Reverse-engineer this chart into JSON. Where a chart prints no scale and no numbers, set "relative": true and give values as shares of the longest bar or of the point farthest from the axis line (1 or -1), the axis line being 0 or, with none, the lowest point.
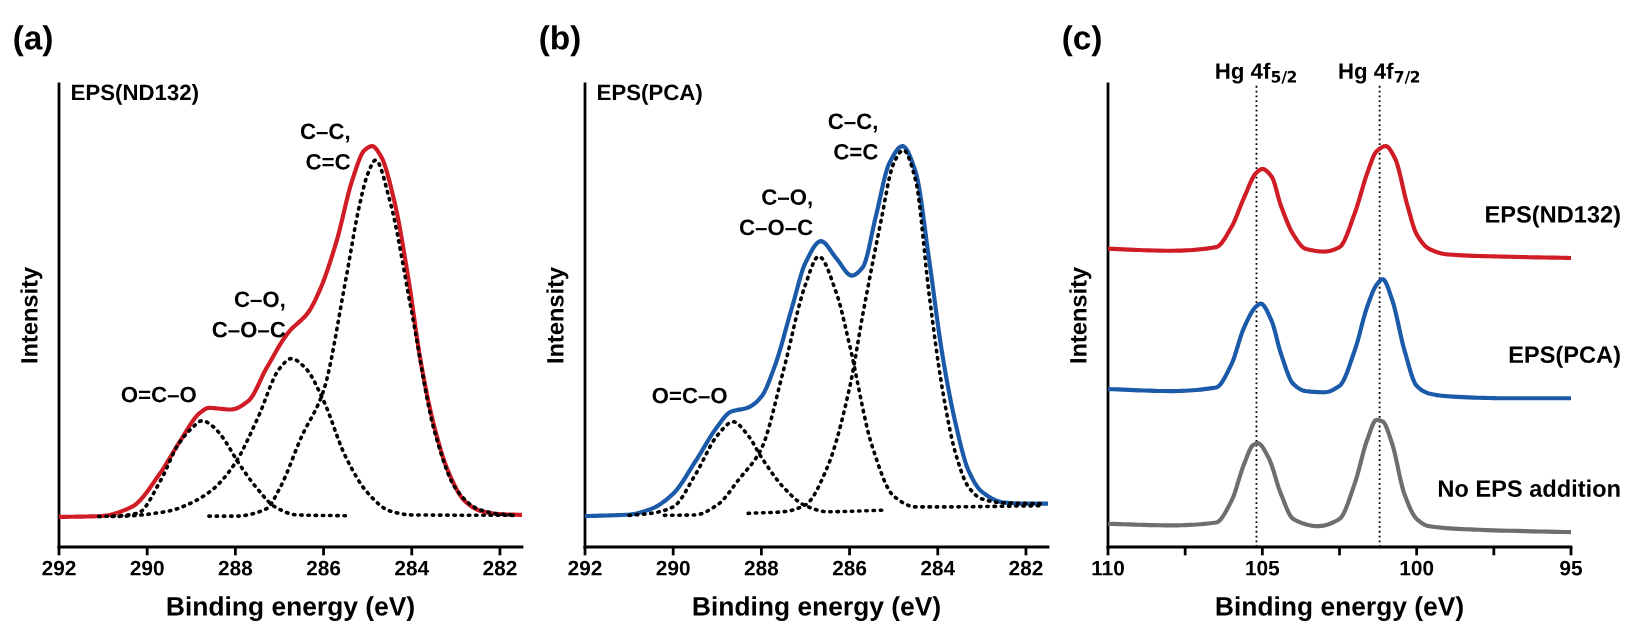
{
  "chart_data": [
    {
      "type": "line",
      "title": "(a)",
      "subtitle": "EPS(ND132)",
      "xlabel": "Binding energy (eV)",
      "ylabel": "Intensity",
      "relative": true,
      "tick_labels": "x",
      "grid": false,
      "legend": false,
      "marker": "none",
      "line_style": "solid",
      "xlim": [
        292,
        281.5
      ],
      "xticks": [
        292,
        290,
        288,
        286,
        284,
        282
      ],
      "series": [
        {
          "color": "#000000",
          "line_style": "dotted",
          "x": [
            291.1,
            290.6,
            290.2,
            289.7,
            289.3,
            289,
            288.75,
            288.5,
            288.3,
            287.9,
            287.5,
            287.1,
            286.6,
            285.5
          ],
          "values": [
            0.076,
            0.078,
            0.085,
            0.165,
            0.255,
            0.295,
            0.315,
            0.3,
            0.275,
            0.205,
            0.145,
            0.1,
            0.08,
            0.078
          ]
        },
        {
          "color": "#000000",
          "line_style": "dotted",
          "x": [
            290.8,
            290.5,
            289.5,
            289,
            288.5,
            288,
            287.5,
            287,
            286.73,
            286.4,
            286,
            285.5,
            285,
            284.5,
            284,
            281.7
          ],
          "values": [
            0.076,
            0.077,
            0.09,
            0.11,
            0.145,
            0.21,
            0.32,
            0.445,
            0.47,
            0.445,
            0.365,
            0.225,
            0.135,
            0.09,
            0.08,
            0.079
          ]
        },
        {
          "color": "#000000",
          "line_style": "dotted",
          "x": [
            288.6,
            288,
            287.3,
            287,
            286.5,
            286,
            285.5,
            285.2,
            285,
            284.82,
            284.5,
            284,
            283.5,
            283,
            282.5,
            282,
            281.7
          ],
          "values": [
            0.077,
            0.077,
            0.095,
            0.145,
            0.275,
            0.39,
            0.665,
            0.845,
            0.93,
            0.965,
            0.865,
            0.585,
            0.295,
            0.145,
            0.095,
            0.082,
            0.08
          ]
        },
        {
          "color": "#d01c24",
          "x": [
            292,
            291.07,
            290.35,
            289.7,
            289.25,
            288.8,
            288.6,
            288.1,
            287.7,
            287.3,
            286.8,
            286.35,
            286.07,
            285.7,
            285.35,
            285.07,
            284.9,
            284.7,
            284.4,
            284.07,
            283.8,
            283.5,
            283.16,
            282.8,
            282.44,
            282,
            281.5
          ],
          "values": [
            0.075,
            0.077,
            0.1,
            0.185,
            0.265,
            0.335,
            0.347,
            0.343,
            0.365,
            0.445,
            0.535,
            0.585,
            0.645,
            0.765,
            0.915,
            0.99,
            1.0,
            0.975,
            0.865,
            0.665,
            0.465,
            0.305,
            0.185,
            0.115,
            0.09,
            0.082,
            0.08
          ]
        }
      ],
      "annotations": [
        "O=C–O",
        "C–O,\nC–O–C",
        "C–C,\nC=C"
      ]
    },
    {
      "type": "line",
      "title": "(b)",
      "subtitle": "EPS(PCA)",
      "xlabel": "Binding energy (eV)",
      "ylabel": "Intensity",
      "relative": true,
      "tick_labels": "x",
      "grid": false,
      "legend": false,
      "marker": "none",
      "line_style": "solid",
      "xlim": [
        292,
        281.5
      ],
      "xticks": [
        292,
        290,
        288,
        286,
        284,
        282
      ],
      "series": [
        {
          "color": "#000000",
          "line_style": "dotted",
          "x": [
            291,
            290.5,
            290,
            289.5,
            289,
            288.64,
            288.3,
            288,
            287.5,
            287,
            286.5,
            285.2
          ],
          "values": [
            0.079,
            0.084,
            0.1,
            0.18,
            0.278,
            0.3125,
            0.278,
            0.224,
            0.149,
            0.103,
            0.088,
            0.092
          ]
        },
        {
          "color": "#000000",
          "line_style": "dotted",
          "x": [
            290.2,
            289.5,
            289,
            288.5,
            288,
            287.5,
            287,
            286.7,
            286.3,
            286,
            285.5,
            285,
            284.5,
            284,
            281.65
          ],
          "values": [
            0.079,
            0.08,
            0.105,
            0.17,
            0.245,
            0.44,
            0.655,
            0.725,
            0.634,
            0.504,
            0.256,
            0.127,
            0.1,
            0.1,
            0.103
          ]
        },
        {
          "color": "#000000",
          "line_style": "dotted",
          "x": [
            288.3,
            287.5,
            287,
            286.5,
            286,
            285.7,
            285.3,
            285,
            284.78,
            284.5,
            284.2,
            283.9,
            283.6,
            283.3,
            283,
            282.5,
            281.65
          ],
          "values": [
            0.084,
            0.088,
            0.105,
            0.2,
            0.397,
            0.58,
            0.806,
            0.957,
            0.99,
            0.914,
            0.634,
            0.397,
            0.235,
            0.149,
            0.12,
            0.11,
            0.108
          ]
        },
        {
          "color": "#1a5aa8",
          "x": [
            292,
            291,
            290.5,
            290,
            289.5,
            289,
            288.7,
            288.3,
            288,
            287.7,
            287.3,
            287,
            286.65,
            286.3,
            285.95,
            285.7,
            285.4,
            285.1,
            284.8,
            284.5,
            284.2,
            283.9,
            283.6,
            283.3,
            283,
            282.5,
            282,
            281.5
          ],
          "values": [
            0.077,
            0.081,
            0.095,
            0.133,
            0.213,
            0.3,
            0.337,
            0.348,
            0.375,
            0.45,
            0.6,
            0.709,
            0.763,
            0.72,
            0.677,
            0.698,
            0.827,
            0.957,
            1.0,
            0.935,
            0.72,
            0.483,
            0.31,
            0.19,
            0.138,
            0.111,
            0.108,
            0.108
          ]
        }
      ],
      "annotations": [
        "O=C–O",
        "C–O,\nC–O–C",
        "C–C,\nC=C"
      ]
    },
    {
      "type": "line",
      "title": "(c)",
      "xlabel": "Binding energy (eV)",
      "ylabel": "Intensity",
      "relative": true,
      "tick_labels": "x",
      "grid": false,
      "legend": false,
      "marker": "none",
      "line_style": "solid",
      "xlim": [
        110,
        95
      ],
      "xticks": [
        110,
        {
          "value": 107.5,
          "label": null
        },
        105,
        {
          "value": 102.5,
          "label": null
        },
        100,
        {
          "value": 97.5,
          "label": null
        },
        95
      ],
      "ref_lines": [
        {
          "axis": "x",
          "value": 105.19,
          "label": "Hg 4f$_{5/2}$",
          "color": "#000000",
          "line_style": "dotted"
        },
        {
          "axis": "x",
          "value": 101.2,
          "label": "Hg 4f$_{7/2}$",
          "color": "#000000",
          "line_style": "dotted"
        }
      ],
      "series": [
        {
          "name": "EPS(ND132)",
          "color": "#d01c24",
          "x": [
            110,
            108,
            106.5,
            106,
            105.6,
            105.2,
            105,
            104.7,
            104.4,
            104,
            103.6,
            103,
            102.5,
            102,
            101.6,
            101.3,
            101,
            100.7,
            100.3,
            100,
            99.6,
            99,
            97,
            95
          ],
          "values": [
            0.744,
            0.739,
            0.748,
            0.798,
            0.87,
            0.933,
            0.943,
            0.924,
            0.852,
            0.78,
            0.744,
            0.737,
            0.748,
            0.834,
            0.933,
            0.987,
            1.0,
            0.969,
            0.852,
            0.78,
            0.744,
            0.73,
            0.724,
            0.721
          ]
        },
        {
          "name": "EPS(PCA)",
          "color": "#1a5aa8",
          "x": [
            110,
            108,
            106.5,
            106,
            105.6,
            105.2,
            105.05,
            104.7,
            104.4,
            104,
            103.6,
            103,
            102.5,
            102,
            101.6,
            101.3,
            101.1,
            100.8,
            100.4,
            100,
            99.6,
            99,
            97,
            95
          ],
          "values": [
            0.394,
            0.389,
            0.398,
            0.456,
            0.546,
            0.6,
            0.607,
            0.564,
            0.483,
            0.407,
            0.389,
            0.386,
            0.402,
            0.492,
            0.6,
            0.654,
            0.668,
            0.618,
            0.492,
            0.402,
            0.383,
            0.376,
            0.371,
            0.371
          ]
        },
        {
          "name": "No EPS addition",
          "color": "#6e6e6e",
          "x": [
            110,
            108,
            106.5,
            106,
            105.6,
            105.3,
            105.15,
            104.8,
            104.4,
            104,
            103.2,
            102.5,
            102,
            101.6,
            101.3,
            101.1,
            100.8,
            100.4,
            100,
            99.6,
            98,
            95
          ],
          "values": [
            0.058,
            0.054,
            0.061,
            0.115,
            0.205,
            0.254,
            0.259,
            0.223,
            0.133,
            0.07,
            0.052,
            0.07,
            0.16,
            0.268,
            0.317,
            0.313,
            0.259,
            0.133,
            0.07,
            0.052,
            0.043,
            0.037
          ]
        }
      ]
    }
  ]
}
